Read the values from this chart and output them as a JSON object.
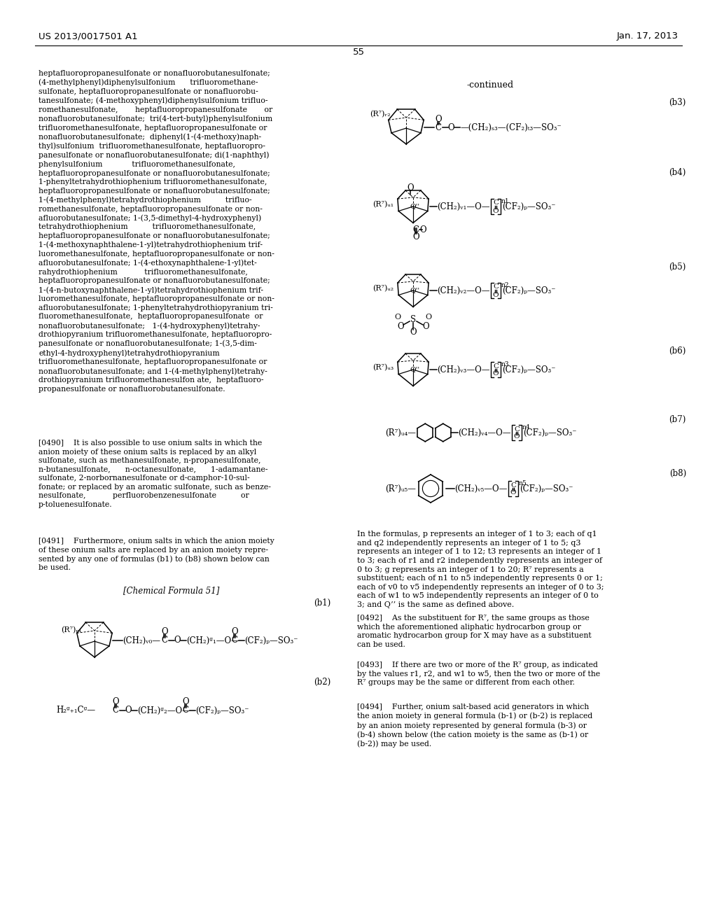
{
  "background_color": "#ffffff",
  "page_number": "55",
  "header_left": "US 2013/0017501 A1",
  "header_right": "Jan. 17, 2013",
  "continued_label": "-continued",
  "left_text": "heptafluoropropanesulfonate or nonafluorobutanesulfonate;\n(4-methylphenyl)diphenylsulfonium      trifluoromethane-\nsulfonate, heptafluoropropanesulfonate or nonafluorobu-\ntanesulfonate; (4-methoxyphenyl)diphenylsulfonium trifluo-\nromethanesulfonate,       heptafluoropropanesulfonate       or\nnonafluorobutanesulfonate;  tri(4-tert-butyl)phenylsulfonium\ntrifluoromethanesulfonate, heptafluoropropanesulfonate or\nnonafluorobutanesulfonate;  diphenyl(1-(4-methoxy)naph-\nthyl)sulfonium  trifluoromethanesulfonate, heptafluoropro-\npanesulfonate or nonafluorobutanesulfonate; di(1-naphthyl)\nphenylsulfonium            trifluoromethanesulfonate,\nheptafluoropropanesulfonate or nonafluorobutanesulfonate;\n1-phenyltetrahydrothiophenium trifluoromethanesulfonate,\nheptafluoropropanesulfonate or nonafluorobutanesulfonate;\n1-(4-methylphenyl)tetrahydrothiophenium          trifluo-\nromethanesulfonate, heptafluoropropanesulfonate or non-\nafluorobutanesulfonate; 1-(3,5-dimethyl-4-hydroxyphenyl)\ntetrahydrothiophenium          trifluoromethanesulfonate,\nheptafluoropropanesulfonate or nonafluorobutanesulfonate;\n1-(4-methoxynaphthalene-1-yl)tetrahydrothiophenium trif-\nluoromethanesulfonate, heptafluoropropanesulfonate or non-\nafluorobutanesulfonate; 1-(4-ethoxynaphthalene-1-yl)tet-\nrahydrothiophenium           trifluoromethanesulfonate,\nheptafluoropropanesulfonate or nonafluorobutanesulfonate;\n1-(4-n-butoxynaphthalene-1-yl)tetrahydrothiophenium trif-\nluoromethanesulfonate, heptafluoropropanesulfonate or non-\nafluorobutanesulfonate; 1-phenyltetrahydrothiopyranium tri-\nfluoromethanesulfonate,  heptafluoropropanesulfonate  or\nnonafluorobutanesulfonate;   1-(4-hydroxyphenyl)tetrahy-\ndrothiopyranium trifluoromethanesulfonate, heptafluoropro-\npanesulfonate or nonafluorobutanesulfonate; 1-(3,5-dim-\nethyl-4-hydroxyphenyl)tetrahydrothiopyranium\ntrifluoromethanesulfonate, heptafluoropropanesulfonate or\nnonafluorobutanesulfonate; and 1-(4-methylphenyl)tetrahy-\ndrothiopyranium trifluoromethanesulfon ate,  heptafluoro-\npropanesulfonate or nonafluorobutanesulfonate.",
  "para_0490": "[0490]    It is also possible to use onium salts in which the\nanion moiety of these onium salts is replaced by an alkyl\nsulfonate, such as methanesulfonate, n-propanesulfonate,\nn-butanesulfonate,      n-octanesulfonate,      1-adamantane-\nsulfonate, 2-norbornanesulfonate or d-camphor-10-sul-\nfonate; or replaced by an aromatic sulfonate, such as benze-\nnesulfonate,           perfluorobenzenesulfonate          or\np-toluenesulfonate.",
  "para_0491": "[0491]    Furthermore, onium salts in which the anion moiety\nof these onium salts are replaced by an anion moiety repre-\nsented by any one of formulas (b1) to (b8) shown below can\nbe used.",
  "formula51_label": "[Chemical Formula 51]",
  "right_desc": "In the formulas, p represents an integer of 1 to 3; each of q1\nand q2 independently represents an integer of 1 to 5; q3\nrepresents an integer of 1 to 12; t3 represents an integer of 1\nto 3; each of r1 and r2 independently represents an integer of\n0 to 3; g represents an integer of 1 to 20; R⁷ represents a\nsubstituent; each of n1 to n5 independently represents 0 or 1;\neach of v0 to v5 independently represents an integer of 0 to 3;\neach of w1 to w5 independently represents an integer of 0 to\n3; and Q’’ is the same as defined above.",
  "para_0492": "[0492]    As the substituent for R⁷, the same groups as those\nwhich the aforementioned aliphatic hydrocarbon group or\naromatic hydrocarbon group for X may have as a substituent\ncan be used.",
  "para_0493": "[0493]    If there are two or more of the R⁷ group, as indicated\nby the values r1, r2, and w1 to w5, then the two or more of the\nR⁷ groups may be the same or different from each other.",
  "para_0494": "[0494]    Further, onium salt-based acid generators in which\nthe anion moiety in general formula (b-1) or (b-2) is replaced\nby an anion moiety represented by general formula (b-3) or\n(b-4) shown below (the cation moiety is the same as (b-1) or\n(b-2)) may be used."
}
